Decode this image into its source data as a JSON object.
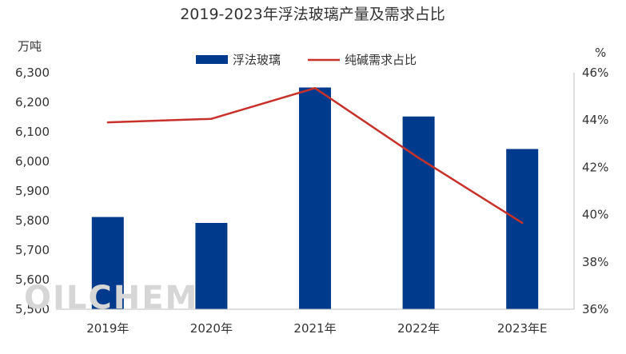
{
  "chart_data": {
    "type": "bar",
    "title": "2019-2023年浮法玻璃产量及需求占比",
    "categories": [
      "2019年",
      "2020年",
      "2021年",
      "2022年",
      "2023年E"
    ],
    "series": [
      {
        "name": "浮法玻璃",
        "type": "bar",
        "axis": "left",
        "color": "#003a8c",
        "values": [
          5812,
          5792,
          6250,
          6152,
          6042
        ]
      },
      {
        "name": "纯碱需求占比",
        "type": "line",
        "axis": "right",
        "color": "#c8312a",
        "values": [
          43.9,
          44.05,
          45.35,
          42.4,
          39.65
        ]
      }
    ],
    "ylabel": "万吨",
    "y2label": "%",
    "ylim": [
      5500,
      6300
    ],
    "y_ticks": [
      "5,500",
      "5,600",
      "5,700",
      "5,800",
      "5,900",
      "6,000",
      "6,100",
      "6,200",
      "6,300"
    ],
    "y2lim": [
      36,
      46
    ],
    "y2_ticks": [
      "36%",
      "38%",
      "40%",
      "42%",
      "44%",
      "46%"
    ],
    "grid": false,
    "legend_position": "top-center"
  },
  "watermark": "OILCHEM"
}
